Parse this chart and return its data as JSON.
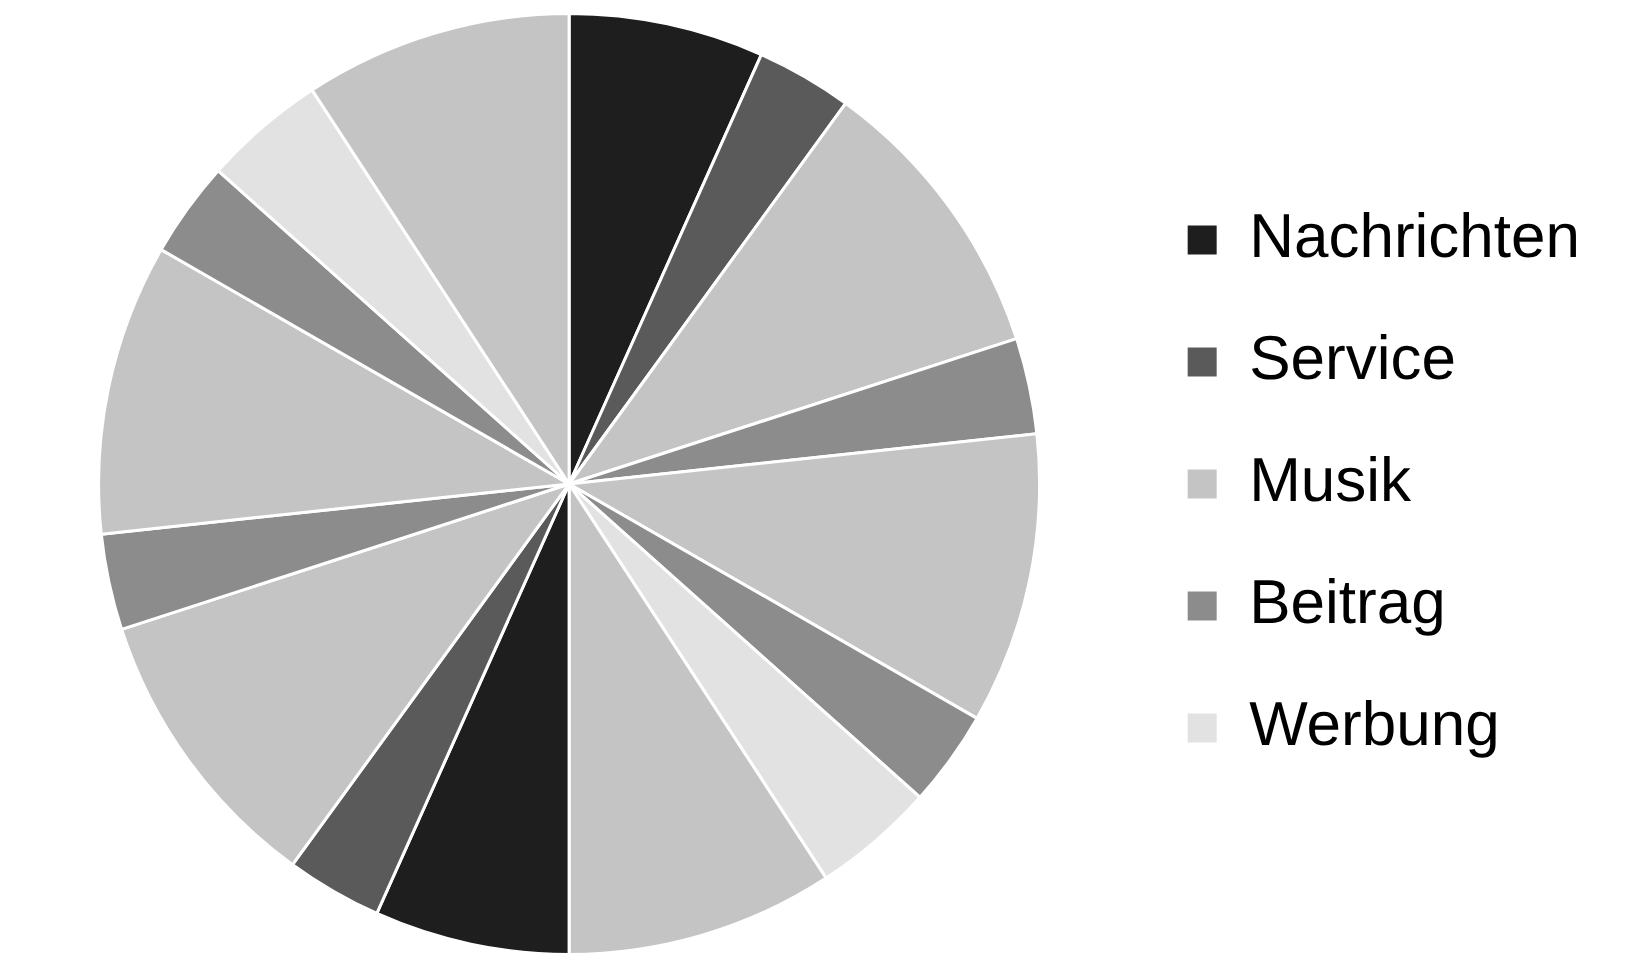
{
  "chart_data": {
    "type": "pie",
    "categories": [
      "Nachrichten",
      "Service",
      "Musik",
      "Beitrag",
      null,
      null,
      "Werbung",
      null,
      null,
      null,
      null,
      null,
      null,
      null,
      null,
      null
    ],
    "values": [
      6.7,
      3.3,
      10,
      3.3,
      10,
      3.3,
      4.2,
      9.2,
      6.7,
      3.3,
      10,
      3.3,
      10,
      3.3,
      4.2,
      9.2
    ],
    "colors": [
      "#1e1e1e",
      "#5a5a5a",
      "#c4c4c4",
      "#8c8c8c",
      "#c4c4c4",
      "#8c8c8c",
      "#e2e2e2",
      "#c4c4c4",
      "#1e1e1e",
      "#5a5a5a",
      "#c4c4c4",
      "#8c8c8c",
      "#c4c4c4",
      "#8c8c8c",
      "#e2e2e2",
      "#c4c4c4"
    ],
    "legend": "right"
  }
}
